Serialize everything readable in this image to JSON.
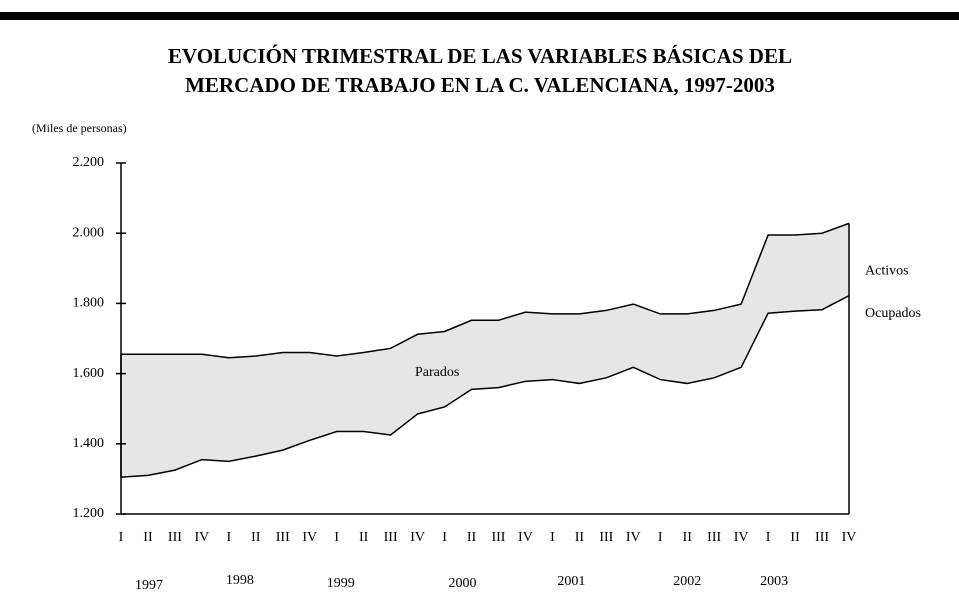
{
  "chart_data": {
    "type": "area-band",
    "title": [
      "EVOLUCIÓN TRIMESTRAL DE LAS VARIABLES BÁSICAS DEL",
      "MERCADO DE TRABAJO EN LA C. VALENCIANA, 1997-2003"
    ],
    "unit_label": "(Miles de personas)",
    "categories": [
      "I",
      "II",
      "III",
      "IV",
      "I",
      "II",
      "III",
      "IV",
      "I",
      "II",
      "III",
      "IV",
      "I",
      "II",
      "III",
      "IV",
      "I",
      "II",
      "III",
      "IV",
      "I",
      "II",
      "III",
      "IV",
      "I",
      "II",
      "III",
      "IV"
    ],
    "years": [
      "1997",
      "1998",
      "1999",
      "2000",
      "2001",
      "2002",
      "2003"
    ],
    "series": [
      {
        "name": "Activos",
        "color": "#000000",
        "values": [
          1655,
          1655,
          1655,
          1655,
          1645,
          1650,
          1660,
          1660,
          1650,
          1660,
          1672,
          1712,
          1720,
          1752,
          1752,
          1775,
          1770,
          1770,
          1780,
          1798,
          1770,
          1770,
          1780,
          1798,
          1995,
          1995,
          2000,
          2028
        ]
      },
      {
        "name": "Ocupados",
        "color": "#000000",
        "values": [
          1305,
          1310,
          1325,
          1355,
          1350,
          1365,
          1382,
          1410,
          1435,
          1435,
          1425,
          1485,
          1505,
          1555,
          1560,
          1578,
          1583,
          1572,
          1588,
          1618,
          1583,
          1572,
          1588,
          1618,
          1772,
          1778,
          1782,
          1822
        ]
      }
    ],
    "band_label": "Parados",
    "band_color": "#e6e6e6",
    "ylim": [
      1200,
      2200
    ],
    "yticks": [
      {
        "value": 1200,
        "label": "1.200"
      },
      {
        "value": 1400,
        "label": "1.400"
      },
      {
        "value": 1600,
        "label": "1.600"
      },
      {
        "value": 1800,
        "label": "1.800"
      },
      {
        "value": 2000,
        "label": "2.000"
      },
      {
        "value": 2200,
        "label": "2.200"
      }
    ]
  }
}
